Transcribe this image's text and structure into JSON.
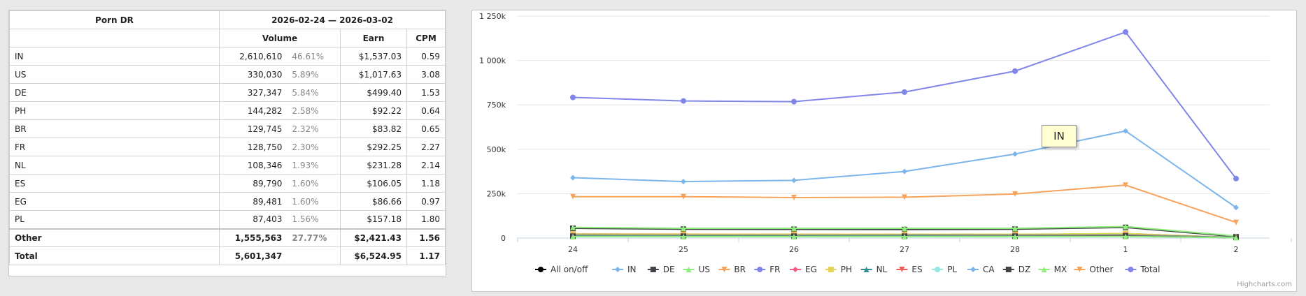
{
  "table": {
    "title": "Porn DR",
    "period": "2026-02-24 — 2026-03-02",
    "columns": {
      "volume": "Volume",
      "earn": "Earn",
      "cpm": "CPM"
    },
    "rows": [
      {
        "country": "IN",
        "volume": "2,610,610",
        "pct": "46.61%",
        "earn": "$1,537.03",
        "cpm": "0.59"
      },
      {
        "country": "US",
        "volume": "330,030",
        "pct": "5.89%",
        "earn": "$1,017.63",
        "cpm": "3.08"
      },
      {
        "country": "DE",
        "volume": "327,347",
        "pct": "5.84%",
        "earn": "$499.40",
        "cpm": "1.53"
      },
      {
        "country": "PH",
        "volume": "144,282",
        "pct": "2.58%",
        "earn": "$92.22",
        "cpm": "0.64"
      },
      {
        "country": "BR",
        "volume": "129,745",
        "pct": "2.32%",
        "earn": "$83.82",
        "cpm": "0.65"
      },
      {
        "country": "FR",
        "volume": "128,750",
        "pct": "2.30%",
        "earn": "$292.25",
        "cpm": "2.27"
      },
      {
        "country": "NL",
        "volume": "108,346",
        "pct": "1.93%",
        "earn": "$231.28",
        "cpm": "2.14"
      },
      {
        "country": "ES",
        "volume": "89,790",
        "pct": "1.60%",
        "earn": "$106.05",
        "cpm": "1.18"
      },
      {
        "country": "EG",
        "volume": "89,481",
        "pct": "1.60%",
        "earn": "$86.66",
        "cpm": "0.97"
      },
      {
        "country": "PL",
        "volume": "87,403",
        "pct": "1.56%",
        "earn": "$157.18",
        "cpm": "1.80"
      }
    ],
    "other": {
      "country": "Other",
      "volume": "1,555,563",
      "pct": "27.77%",
      "earn": "$2,421.43",
      "cpm": "1.56"
    },
    "total": {
      "country": "Total",
      "volume": "5,601,347",
      "earn": "$6,524.95",
      "cpm": "1.17"
    }
  },
  "tooltip": {
    "text": "IN"
  },
  "credits": "Highcharts.com",
  "chart_data": {
    "type": "line",
    "categories": [
      "24",
      "25",
      "26",
      "27",
      "28",
      "1",
      "2"
    ],
    "yticks": [
      "0",
      "250k",
      "500k",
      "750k",
      "1 000k",
      "1 250k"
    ],
    "ylim": [
      0,
      1250000
    ],
    "grid": true,
    "legend_position": "bottom",
    "series": [
      {
        "name": "All on/off",
        "color": "#000000",
        "marker": "circle",
        "values": null
      },
      {
        "name": "IN",
        "color": "#7cb5ec",
        "marker": "diamond",
        "values": [
          340000,
          318000,
          325000,
          375000,
          473000,
          603000,
          172000
        ]
      },
      {
        "name": "DE",
        "color": "#434348",
        "marker": "square",
        "values": [
          55000,
          50000,
          49000,
          48000,
          50000,
          60000,
          8000
        ]
      },
      {
        "name": "US",
        "color": "#90ed7d",
        "marker": "triangle",
        "values": [
          60000,
          55000,
          55000,
          55000,
          55000,
          65000,
          12000
        ]
      },
      {
        "name": "BR",
        "color": "#f7a35c",
        "marker": "triangle-down",
        "values": [
          23000,
          22000,
          21000,
          21000,
          20000,
          25000,
          3000
        ]
      },
      {
        "name": "FR",
        "color": "#8085e9",
        "marker": "circle",
        "values": [
          20000,
          19000,
          19000,
          20000,
          20000,
          23000,
          4000
        ]
      },
      {
        "name": "EG",
        "color": "#f15c80",
        "marker": "diamond",
        "values": [
          14000,
          13000,
          13000,
          13000,
          13000,
          16000,
          2000
        ]
      },
      {
        "name": "PH",
        "color": "#e4d354",
        "marker": "square",
        "values": [
          21000,
          20000,
          20000,
          21000,
          21000,
          25000,
          3000
        ]
      },
      {
        "name": "NL",
        "color": "#2b908f",
        "marker": "triangle",
        "values": [
          16000,
          15000,
          15000,
          16000,
          16000,
          18000,
          3000
        ]
      },
      {
        "name": "ES",
        "color": "#f45b5b",
        "marker": "triangle-down",
        "values": [
          13000,
          13000,
          13000,
          13000,
          14000,
          16000,
          2000
        ]
      },
      {
        "name": "PL",
        "color": "#91e8e1",
        "marker": "circle",
        "values": [
          12000,
          12000,
          12000,
          12000,
          12000,
          14000,
          2000
        ]
      },
      {
        "name": "CA",
        "color": "#7cb5ec",
        "marker": "diamond",
        "values": [
          9000,
          9000,
          9000,
          9000,
          9000,
          11000,
          2000
        ]
      },
      {
        "name": "DZ",
        "color": "#434348",
        "marker": "square",
        "values": [
          10000,
          10000,
          10000,
          10000,
          10000,
          12000,
          2000
        ]
      },
      {
        "name": "MX",
        "color": "#90ed7d",
        "marker": "triangle",
        "values": [
          8000,
          8000,
          8000,
          8000,
          8000,
          9000,
          2000
        ]
      },
      {
        "name": "Other",
        "color": "#f7a35c",
        "marker": "triangle-down",
        "values": [
          233000,
          233000,
          228000,
          230000,
          248000,
          298000,
          88000
        ]
      },
      {
        "name": "Total",
        "color": "#8085e9",
        "marker": "circle",
        "values": [
          792000,
          772000,
          768000,
          822000,
          940000,
          1160000,
          335000
        ]
      }
    ]
  }
}
